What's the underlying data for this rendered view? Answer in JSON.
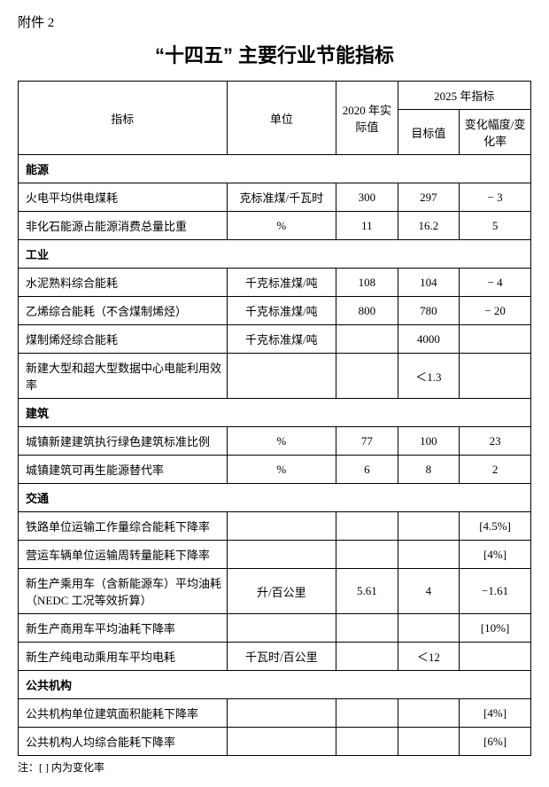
{
  "attachment_label": "附件 2",
  "title": "“十四五” 主要行业节能指标",
  "header": {
    "indicator": "指标",
    "unit": "单位",
    "actual_2020": "2020 年实际值",
    "target_2025_group": "2025 年指标",
    "target_value": "目标值",
    "change": "变化幅度/变化率"
  },
  "sections": {
    "energy": {
      "label": "能源"
    },
    "industry": {
      "label": "工业"
    },
    "building": {
      "label": "建筑"
    },
    "transport": {
      "label": "交通"
    },
    "public": {
      "label": "公共机构"
    }
  },
  "rows": {
    "r1": {
      "name": "火电平均供电煤耗",
      "unit": "克标准煤/千瓦时",
      "v2020": "300",
      "target": "297",
      "change": "− 3"
    },
    "r2": {
      "name": "非化石能源占能源消费总量比重",
      "unit": "%",
      "v2020": "11",
      "target": "16.2",
      "change": "5"
    },
    "r3": {
      "name": "水泥熟料综合能耗",
      "unit": "千克标准煤/吨",
      "v2020": "108",
      "target": "104",
      "change": "− 4"
    },
    "r4": {
      "name": "乙烯综合能耗（不含煤制烯烃）",
      "unit": "千克标准煤/吨",
      "v2020": "800",
      "target": "780",
      "change": "− 20"
    },
    "r5": {
      "name": "煤制烯烃综合能耗",
      "unit": "千克标准煤/吨",
      "v2020": "",
      "target": "4000",
      "change": ""
    },
    "r6": {
      "name": "新建大型和超大型数据中心电能利用效率",
      "unit": "",
      "v2020": "",
      "target": "＜1.3",
      "change": ""
    },
    "r7": {
      "name": "城镇新建建筑执行绿色建筑标准比例",
      "unit": "%",
      "v2020": "77",
      "target": "100",
      "change": "23"
    },
    "r8": {
      "name": "城镇建筑可再生能源替代率",
      "unit": "%",
      "v2020": "6",
      "target": "8",
      "change": "2"
    },
    "r9": {
      "name": "铁路单位运输工作量综合能耗下降率",
      "unit": "",
      "v2020": "",
      "target": "",
      "change": "[4.5%]"
    },
    "r10": {
      "name": "营运车辆单位运输周转量能耗下降率",
      "unit": "",
      "v2020": "",
      "target": "",
      "change": "[4%]"
    },
    "r11": {
      "name": "新生产乘用车（含新能源车）平均油耗（NEDC 工况等效折算）",
      "unit": "升/百公里",
      "v2020": "5.61",
      "target": "4",
      "change": "−1.61"
    },
    "r12": {
      "name": "新生产商用车平均油耗下降率",
      "unit": "",
      "v2020": "",
      "target": "",
      "change": "[10%]"
    },
    "r13": {
      "name": "新生产纯电动乘用车平均电耗",
      "unit": "千瓦时/百公里",
      "v2020": "",
      "target": "＜12",
      "change": ""
    },
    "r14": {
      "name": "公共机构单位建筑面积能耗下降率",
      "unit": "",
      "v2020": "",
      "target": "",
      "change": "[4%]"
    },
    "r15": {
      "name": "公共机构人均综合能耗下降率",
      "unit": "",
      "v2020": "",
      "target": "",
      "change": "[6%]"
    }
  },
  "footnote": "注：[ ] 内为变化率"
}
